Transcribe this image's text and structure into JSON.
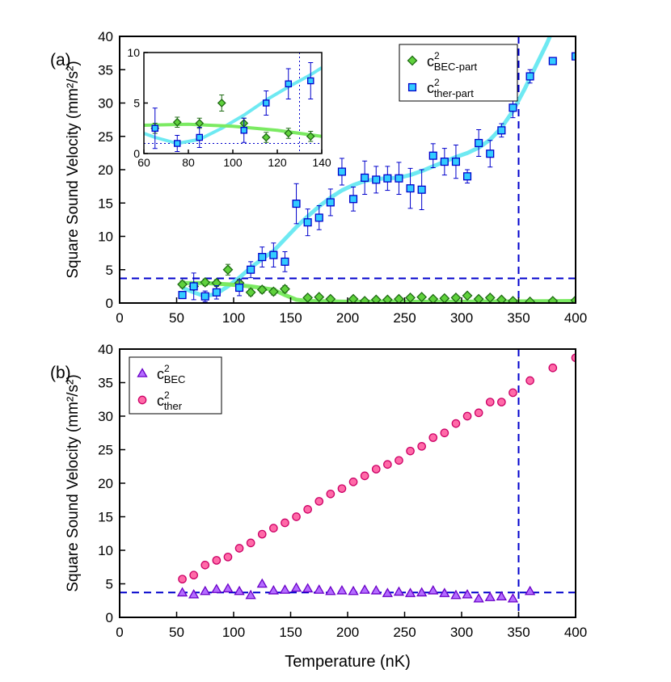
{
  "chart_data": [
    {
      "type": "scatter",
      "panel_label": "(a)",
      "ylabel": "Square Sound Velocity (mm²/s²)",
      "xlim": [
        0,
        400
      ],
      "xticks": [
        0,
        50,
        100,
        150,
        200,
        250,
        300,
        350,
        400
      ],
      "ylim": [
        0,
        40
      ],
      "yticks": [
        0,
        5,
        10,
        15,
        20,
        25,
        30,
        35,
        40
      ],
      "legend": "upper right",
      "series": [
        {
          "name": "c",
          "name_sup": "2",
          "name_sub": "BEC-part",
          "marker": "diamond",
          "color": "#5fd13c",
          "edgecolor": "#1f6b14",
          "x": [
            55,
            65,
            75,
            85,
            95,
            105,
            115,
            125,
            135,
            145,
            165,
            175,
            185,
            205,
            215,
            225,
            235,
            245,
            255,
            265,
            275,
            285,
            295,
            305,
            315,
            325,
            335,
            345,
            360,
            380,
            400
          ],
          "values": [
            2.8,
            2.5,
            3.1,
            3.0,
            5.0,
            3.0,
            1.6,
            2.0,
            1.7,
            2.1,
            0.8,
            0.9,
            0.6,
            0.6,
            0.3,
            0.5,
            0.5,
            0.6,
            0.8,
            0.9,
            0.6,
            0.7,
            0.8,
            1.1,
            0.6,
            0.8,
            0.5,
            0.3,
            0.2,
            0.3,
            0.4
          ],
          "errors": [
            0.5,
            0.5,
            0.5,
            0.5,
            0.8,
            0.5,
            0.5,
            0.5,
            0.5,
            0.5,
            0.3,
            0.3,
            0.3,
            0.3,
            0.3,
            0.3,
            0.3,
            0.3,
            0.3,
            0.3,
            0.3,
            0.3,
            0.3,
            0.3,
            0.3,
            0.3,
            0.3,
            0.3,
            0.3,
            0.3,
            0.3
          ]
        },
        {
          "name": "c",
          "name_sup": "2",
          "name_sub": "ther-part",
          "marker": "square",
          "color": "#33ccff",
          "edgecolor": "#0000cc",
          "x": [
            55,
            65,
            75,
            85,
            105,
            115,
            125,
            135,
            145,
            155,
            165,
            175,
            185,
            195,
            205,
            215,
            225,
            235,
            245,
            255,
            265,
            275,
            285,
            295,
            305,
            315,
            325,
            335,
            345,
            360,
            380,
            400
          ],
          "values": [
            1.2,
            2.5,
            1.0,
            1.6,
            2.3,
            5.0,
            6.9,
            7.2,
            6.2,
            14.9,
            12.1,
            12.8,
            15.1,
            19.7,
            15.6,
            18.8,
            18.5,
            18.7,
            18.7,
            17.2,
            17.0,
            22.1,
            21.2,
            21.2,
            19.0,
            24.0,
            22.4,
            25.9,
            29.3,
            34.0,
            36.3,
            37.0
          ],
          "errors": [
            0.5,
            2,
            0.8,
            1,
            1.2,
            1.2,
            1.5,
            1.8,
            1.5,
            3,
            2,
            1.8,
            2,
            2,
            1.8,
            2.5,
            2,
            1.8,
            2.4,
            3,
            3,
            1.8,
            2,
            2.5,
            1,
            2,
            2,
            1,
            1.5,
            1,
            0.5,
            0.5
          ]
        }
      ],
      "fits": [
        {
          "color": "#6ee9f2",
          "x": [
            55,
            65,
            75,
            85,
            95,
            105,
            115,
            125,
            135,
            145,
            155,
            165,
            175,
            185,
            195,
            205,
            215,
            225,
            235,
            245,
            255,
            265,
            275,
            285,
            295,
            305,
            315,
            325,
            335,
            345,
            355,
            365,
            375,
            380
          ],
          "values": [
            2.3,
            1.6,
            1.0,
            1.4,
            2.5,
            3.8,
            5.3,
            6.6,
            7.8,
            9.6,
            11.4,
            13.0,
            14.5,
            15.8,
            16.9,
            17.7,
            18.3,
            18.6,
            18.7,
            18.8,
            19.2,
            19.8,
            20.5,
            21.2,
            21.9,
            22.5,
            23.3,
            24.5,
            26.3,
            28.8,
            32.0,
            35.5,
            39.0,
            41.0
          ]
        },
        {
          "color": "#7bea62",
          "x": [
            55,
            75,
            95,
            115,
            135,
            145,
            155,
            165,
            200,
            300,
            400
          ],
          "values": [
            3.0,
            3.0,
            2.8,
            2.5,
            2.0,
            1.2,
            0.5,
            0.3,
            0.2,
            0.2,
            0.3
          ]
        }
      ],
      "hlines": [
        3.7
      ],
      "vlines": [
        350
      ],
      "refline_color": "#0000cc",
      "refline_style": "dashed"
    },
    {
      "type": "scatter",
      "panel_label": "(b)",
      "ylabel": "Square Sound Velocity (mm²/s²)",
      "xlabel": "Temperature (nK)",
      "xlim": [
        0,
        400
      ],
      "xticks": [
        0,
        50,
        100,
        150,
        200,
        250,
        300,
        350,
        400
      ],
      "ylim": [
        0,
        40
      ],
      "yticks": [
        0,
        5,
        10,
        15,
        20,
        25,
        30,
        35,
        40
      ],
      "legend": "upper left",
      "series": [
        {
          "name": "c",
          "name_sup": "2",
          "name_sub": "BEC",
          "marker": "triangle",
          "color": "#b46cff",
          "edgecolor": "#6a00c8",
          "x": [
            55,
            65,
            75,
            85,
            95,
            105,
            115,
            125,
            135,
            145,
            155,
            165,
            175,
            185,
            195,
            205,
            215,
            225,
            235,
            245,
            255,
            265,
            275,
            285,
            295,
            305,
            315,
            325,
            335,
            345,
            360
          ],
          "values": [
            3.7,
            3.4,
            3.9,
            4.2,
            4.3,
            3.9,
            3.3,
            5.0,
            4.0,
            4.1,
            4.4,
            4.3,
            4.1,
            3.9,
            4.0,
            3.9,
            4.1,
            4.0,
            3.6,
            3.8,
            3.6,
            3.7,
            4.0,
            3.6,
            3.3,
            3.4,
            2.8,
            3.0,
            3.1,
            2.8,
            3.9
          ]
        },
        {
          "name": "c",
          "name_sup": "2",
          "name_sub": "ther",
          "marker": "circle",
          "color": "#ff6aa8",
          "edgecolor": "#cc0066",
          "x": [
            55,
            65,
            75,
            85,
            95,
            105,
            115,
            125,
            135,
            145,
            155,
            165,
            175,
            185,
            195,
            205,
            215,
            225,
            235,
            245,
            255,
            265,
            275,
            285,
            295,
            305,
            315,
            325,
            335,
            345,
            360,
            380,
            400
          ],
          "values": [
            5.7,
            6.3,
            7.8,
            8.5,
            9.0,
            10.3,
            11.1,
            12.4,
            13.3,
            14.1,
            15.0,
            16.1,
            17.3,
            18.4,
            19.2,
            20.2,
            21.1,
            22.1,
            22.8,
            23.4,
            24.8,
            25.5,
            26.8,
            27.5,
            28.9,
            30.0,
            30.5,
            32.1,
            32.1,
            33.5,
            35.3,
            37.2,
            38.7
          ]
        }
      ],
      "hlines": [
        3.7
      ],
      "vlines": [
        350
      ],
      "refline_color": "#0000cc",
      "refline_style": "dashed"
    },
    {
      "type": "scatter",
      "inset": true,
      "xlim": [
        60,
        140
      ],
      "xticks": [
        60,
        80,
        100,
        120,
        140
      ],
      "ylim": [
        0,
        10
      ],
      "yticks": [
        0,
        5,
        10
      ],
      "series": [
        {
          "marker": "diamond",
          "color": "#5fd13c",
          "edgecolor": "#1f6b14",
          "x": [
            65,
            75,
            85,
            95,
            105,
            115,
            125,
            135
          ],
          "values": [
            2.5,
            3.1,
            3.0,
            5.0,
            3.0,
            1.6,
            2.0,
            1.7
          ],
          "errors": [
            0.5,
            0.5,
            0.5,
            0.8,
            0.5,
            0.5,
            0.5,
            0.5
          ]
        },
        {
          "marker": "square",
          "color": "#33ccff",
          "edgecolor": "#0000cc",
          "x": [
            65,
            75,
            85,
            105,
            115,
            125,
            135
          ],
          "values": [
            2.5,
            1.0,
            1.6,
            2.3,
            5.0,
            6.9,
            7.2
          ],
          "errors": [
            2,
            0.8,
            1,
            1.2,
            1.2,
            1.5,
            1.8
          ]
        }
      ],
      "fits": [
        {
          "color": "#6ee9f2",
          "x": [
            60,
            65,
            75,
            85,
            95,
            105,
            115,
            125,
            135,
            140
          ],
          "values": [
            2.0,
            1.6,
            1.0,
            1.4,
            2.5,
            3.8,
            5.3,
            6.6,
            7.8,
            8.5
          ]
        },
        {
          "color": "#7bea62",
          "x": [
            60,
            80,
            100,
            120,
            140
          ],
          "values": [
            2.8,
            2.9,
            2.7,
            2.3,
            1.7
          ]
        }
      ],
      "hlines": [
        1
      ],
      "vlines": [
        130
      ],
      "refline_color": "#0000cc",
      "refline_style": "dotted"
    }
  ]
}
